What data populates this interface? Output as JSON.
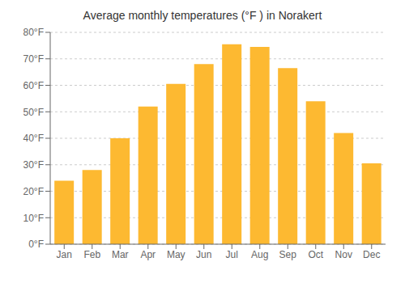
{
  "chart_data": {
    "type": "bar",
    "title": "Average monthly temperatures (°F ) in Norakert",
    "categories": [
      "Jan",
      "Feb",
      "Mar",
      "Apr",
      "May",
      "Jun",
      "Jul",
      "Aug",
      "Sep",
      "Oct",
      "Nov",
      "Dec"
    ],
    "values": [
      24,
      28,
      40,
      52,
      60.5,
      68,
      75.5,
      74.5,
      66.5,
      54,
      42,
      30.5
    ],
    "color": "#FDB931",
    "ylim": [
      0,
      80
    ],
    "yticks": [
      {
        "value": 0,
        "label": "0°F"
      },
      {
        "value": 10,
        "label": "10°F"
      },
      {
        "value": 20,
        "label": "20°F"
      },
      {
        "value": 30,
        "label": "30°F"
      },
      {
        "value": 40,
        "label": "40°F"
      },
      {
        "value": 50,
        "label": "50°F"
      },
      {
        "value": 60,
        "label": "60°F"
      },
      {
        "value": 70,
        "label": "70°F"
      },
      {
        "value": 80,
        "label": "80°F"
      }
    ],
    "grid": true
  }
}
